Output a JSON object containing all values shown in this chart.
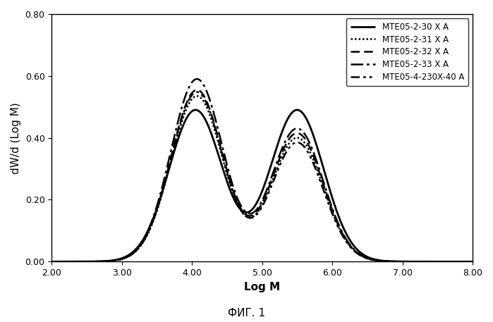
{
  "title": "",
  "xlabel": "Log M",
  "ylabel": "dW/d (Log M)",
  "xlabel_caption": "ФИГ. 1",
  "xlim": [
    2.0,
    8.0
  ],
  "ylim": [
    0.0,
    0.8
  ],
  "xticks": [
    2.0,
    3.0,
    4.0,
    5.0,
    6.0,
    7.0,
    8.0
  ],
  "yticks": [
    0.0,
    0.2,
    0.4,
    0.6,
    0.8
  ],
  "series": [
    {
      "label": "MTE05-2-30 X A",
      "linestyle": "solid",
      "linewidth": 2.0,
      "color": "#000000",
      "peak1": 0.49,
      "peak2": 0.49,
      "p1c": 4.05,
      "p2c": 5.5,
      "p1w": 0.38,
      "p2w": 0.38
    },
    {
      "label": "MTE05-2-31 X A",
      "linestyle": "dotted",
      "linewidth": 1.8,
      "color": "#000000",
      "peak1": 0.535,
      "peak2": 0.4,
      "p1c": 4.07,
      "p2c": 5.5,
      "p1w": 0.37,
      "p2w": 0.37
    },
    {
      "label": "MTE05-2-32 X A",
      "linestyle": "dashed",
      "linewidth": 1.8,
      "color": "#000000",
      "peak1": 0.555,
      "peak2": 0.415,
      "p1c": 4.07,
      "p2c": 5.5,
      "p1w": 0.37,
      "p2w": 0.37
    },
    {
      "label": "MTE05-2-33 X A",
      "linestyle": "dashdot",
      "linewidth": 1.8,
      "color": "#000000",
      "peak1": 0.59,
      "peak2": 0.43,
      "p1c": 4.07,
      "p2c": 5.5,
      "p1w": 0.37,
      "p2w": 0.37
    },
    {
      "label": "MTE05-4-230X-40 A",
      "linestyle": "loosely_dashdot",
      "linewidth": 1.8,
      "color": "#000000",
      "peak1": 0.548,
      "peak2": 0.385,
      "p1c": 4.07,
      "p2c": 5.5,
      "p1w": 0.37,
      "p2w": 0.37
    }
  ],
  "background_color": "#ffffff",
  "legend_fontsize": 8.5,
  "axis_fontsize": 11,
  "tick_fontsize": 9
}
